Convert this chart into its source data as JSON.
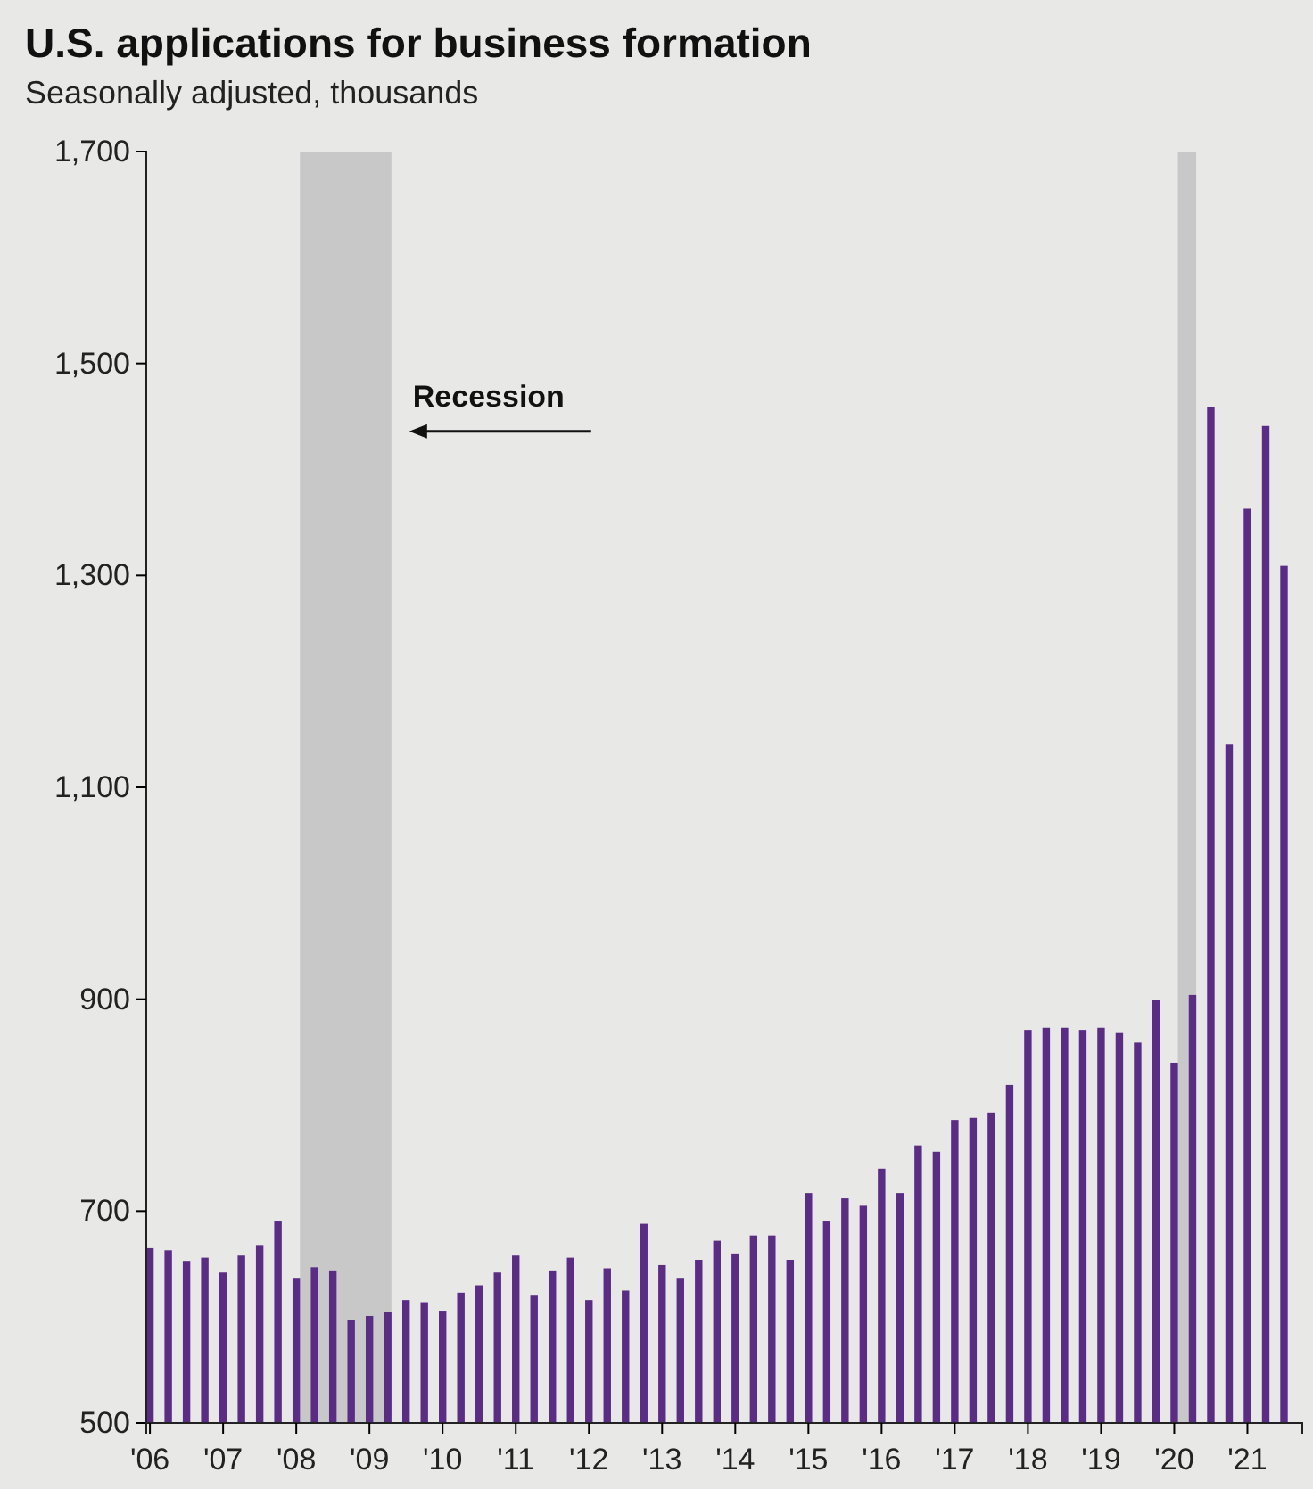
{
  "chart_data": {
    "type": "bar",
    "title": "U.S. applications for business formation",
    "subtitle": "Seasonally adjusted, thousands",
    "x": [
      2006,
      2006.25,
      2006.5,
      2006.75,
      2007,
      2007.25,
      2007.5,
      2007.75,
      2008,
      2008.25,
      2008.5,
      2008.75,
      2009,
      2009.25,
      2009.5,
      2009.75,
      2010,
      2010.25,
      2010.5,
      2010.75,
      2011,
      2011.25,
      2011.5,
      2011.75,
      2012,
      2012.25,
      2012.5,
      2012.75,
      2013,
      2013.25,
      2013.5,
      2013.75,
      2014,
      2014.25,
      2014.5,
      2014.75,
      2015,
      2015.25,
      2015.5,
      2015.75,
      2016,
      2016.25,
      2016.5,
      2016.75,
      2017,
      2017.25,
      2017.5,
      2017.75,
      2018,
      2018.25,
      2018.5,
      2018.75,
      2019,
      2019.25,
      2019.5,
      2019.75,
      2020,
      2020.25,
      2020.5,
      2020.75,
      2021,
      2021.25,
      2021.5
    ],
    "values": [
      665,
      663,
      653,
      656,
      642,
      658,
      668,
      691,
      637,
      647,
      644,
      597,
      601,
      605,
      616,
      614,
      606,
      623,
      630,
      642,
      658,
      621,
      644,
      656,
      616,
      646,
      625,
      688,
      649,
      637,
      654,
      672,
      660,
      677,
      677,
      654,
      717,
      691,
      712,
      705,
      740,
      717,
      762,
      756,
      786,
      788,
      793,
      819,
      871,
      873,
      873,
      871,
      873,
      868,
      859,
      899,
      840,
      904,
      1459,
      1141,
      1363,
      1441,
      1309
    ],
    "color": "#5b2c86",
    "xlim": [
      2005.95,
      2021.75
    ],
    "xticks": [
      {
        "value": 2006,
        "label": "'06"
      },
      {
        "value": 2007,
        "label": "'07"
      },
      {
        "value": 2008,
        "label": "'08"
      },
      {
        "value": 2009,
        "label": "'09"
      },
      {
        "value": 2010,
        "label": "'10"
      },
      {
        "value": 2011,
        "label": "'11"
      },
      {
        "value": 2012,
        "label": "'12"
      },
      {
        "value": 2013,
        "label": "'13"
      },
      {
        "value": 2014,
        "label": "'14"
      },
      {
        "value": 2015,
        "label": "'15"
      },
      {
        "value": 2016,
        "label": "'16"
      },
      {
        "value": 2017,
        "label": "'17"
      },
      {
        "value": 2018,
        "label": "'18"
      },
      {
        "value": 2019,
        "label": "'19"
      },
      {
        "value": 2020,
        "label": "'20"
      },
      {
        "value": 2021,
        "label": "'21"
      }
    ],
    "ylim": [
      500,
      1700
    ],
    "yticks": [
      500,
      700,
      900,
      {
        "value": 1100,
        "label": "1,100"
      },
      {
        "value": 1300,
        "label": "1,300"
      },
      {
        "value": 1500,
        "label": "1,500"
      },
      {
        "value": 1700,
        "label": "1,700"
      }
    ],
    "bands": [
      {
        "axis": "x",
        "from": 2008.05,
        "to": 2009.3,
        "color": "#c8c8c8"
      },
      {
        "axis": "x",
        "from": 2020.05,
        "to": 2020.3,
        "color": "#c8c8c8"
      }
    ],
    "annotations": [
      "Recession"
    ],
    "grid": false
  }
}
